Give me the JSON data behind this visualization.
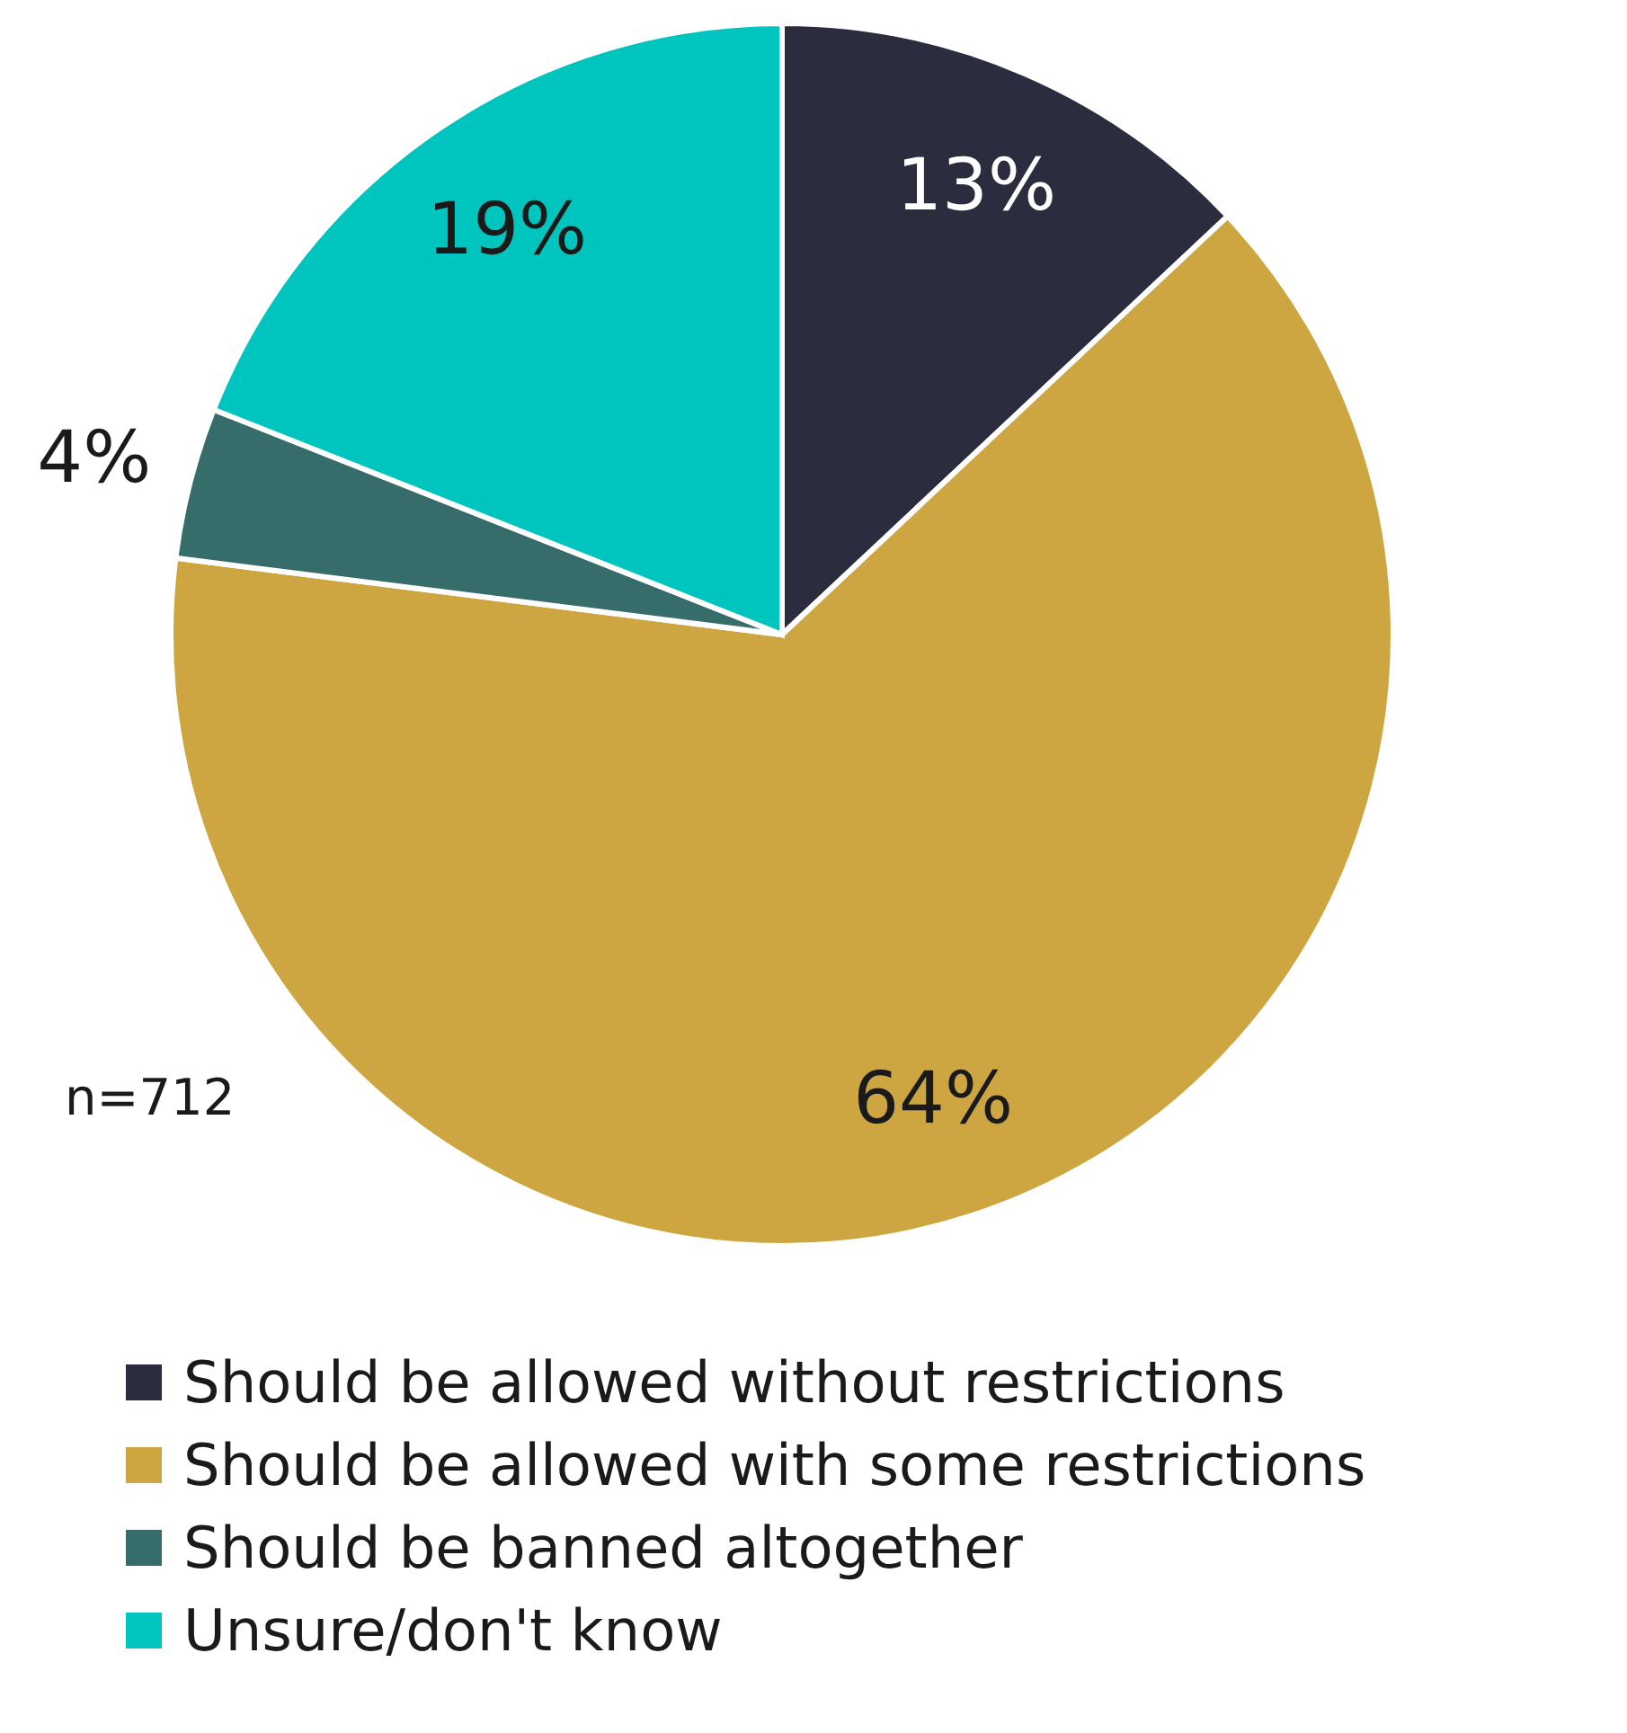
{
  "chart_data": {
    "type": "pie",
    "categories": [
      "Should be allowed without restrictions",
      "Should be allowed with some restrictions",
      "Should be banned altogether",
      "Unsure/don't know"
    ],
    "values": [
      13,
      64,
      4,
      19
    ],
    "value_labels": [
      "13%",
      "64%",
      "4%",
      "19%"
    ],
    "colors": [
      "#2b2d3f",
      "#cda641",
      "#366c69",
      "#00c4be"
    ],
    "annotations": [
      "n=712"
    ],
    "legend": "bottom"
  }
}
